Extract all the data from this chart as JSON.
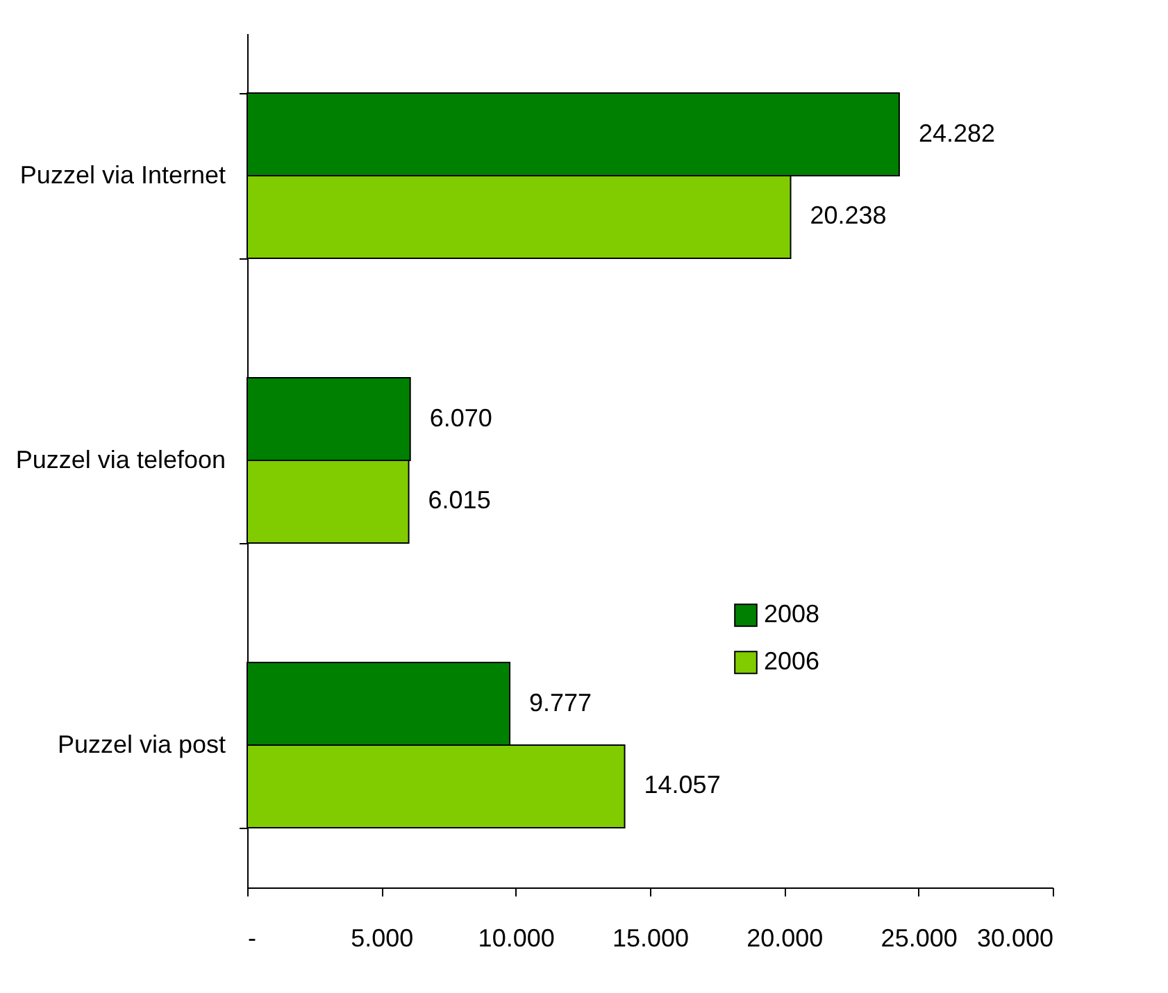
{
  "chart_data": {
    "type": "bar",
    "orientation": "horizontal",
    "categories": [
      "Puzzel via Internet",
      "Puzzel via telefoon",
      "Puzzel via post"
    ],
    "series": [
      {
        "name": "2008",
        "color": "#008000",
        "values": [
          24282,
          6070,
          9777
        ],
        "value_labels": [
          "24.282",
          "6.070",
          "9.777"
        ]
      },
      {
        "name": "2006",
        "color": "#80cc00",
        "values": [
          20238,
          6015,
          14057
        ],
        "value_labels": [
          "20.238",
          "6.015",
          "14.057"
        ]
      }
    ],
    "xlim": [
      0,
      30000
    ],
    "xticks": [
      {
        "value": 0,
        "label": "-"
      },
      {
        "value": 5000,
        "label": "5.000"
      },
      {
        "value": 10000,
        "label": "10.000"
      },
      {
        "value": 15000,
        "label": "15.000"
      },
      {
        "value": 20000,
        "label": "20.000"
      },
      {
        "value": 25000,
        "label": "25.000"
      },
      {
        "value": 30000,
        "label": "30.000"
      }
    ],
    "grid": false,
    "legend": "right"
  }
}
